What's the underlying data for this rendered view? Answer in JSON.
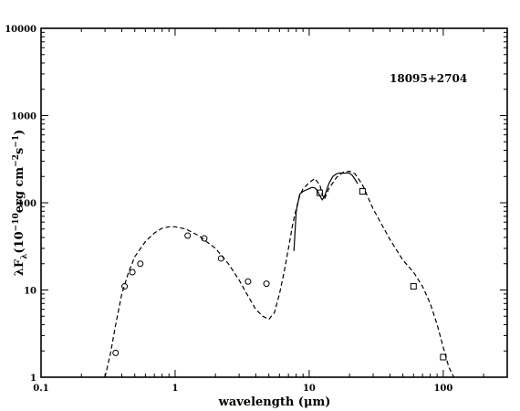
{
  "chart_data": {
    "type": "scatter",
    "title": "",
    "annotation": "18095+2704",
    "xlabel": "wavelength (μm)",
    "ylabel_main": "λF",
    "ylabel_sub": "λ",
    "ylabel_rest": "(10",
    "ylabel_exp1": "−10",
    "ylabel_unit": "erg cm",
    "ylabel_exp2": "−2",
    "ylabel_s": "s",
    "ylabel_exp3": "−1",
    "ylabel_close": ")",
    "xscale": "log",
    "yscale": "log",
    "xlim": [
      0.1,
      300
    ],
    "ylim": [
      1,
      10000
    ],
    "grid": false,
    "xtick_values": [
      0.1,
      1,
      10,
      100
    ],
    "xtick_labels": [
      "0.1",
      "1",
      "10",
      "100"
    ],
    "ytick_values": [
      1,
      10,
      100,
      1000,
      10000
    ],
    "ytick_labels": [
      "1",
      "10",
      "100",
      "1000",
      "10000"
    ],
    "series": [
      {
        "marker": "circle",
        "x": [
          0.36,
          0.42,
          0.48,
          0.55,
          1.24,
          1.65,
          2.2,
          3.5,
          4.8
        ],
        "y": [
          1.9,
          11,
          16,
          20,
          42,
          39,
          23,
          12.5,
          11.8
        ]
      },
      {
        "marker": "square",
        "x": [
          12,
          25,
          60,
          100
        ],
        "y": [
          130,
          135,
          11,
          1.7
        ]
      },
      {
        "style": "solid",
        "x": [
          7.7,
          8.0,
          8.5,
          9.0,
          9.5,
          10.0,
          10.5,
          11.0,
          11.5,
          12.0,
          12.5,
          13.0,
          13.5,
          14.0,
          15.0,
          16.0,
          17.0,
          18.0,
          19.0,
          20.0,
          21.0,
          22.0,
          23.0
        ],
        "y": [
          28,
          80,
          125,
          135,
          140,
          145,
          150,
          148,
          138,
          120,
          108,
          118,
          140,
          165,
          200,
          215,
          220,
          218,
          220,
          218,
          205,
          185,
          165
        ]
      },
      {
        "style": "dashed",
        "x": [
          0.3,
          0.33,
          0.36,
          0.4,
          0.45,
          0.5,
          0.6,
          0.7,
          0.8,
          0.9,
          1.0,
          1.2,
          1.5,
          2.0,
          2.5,
          3.0,
          3.5,
          4.0,
          4.5,
          5.0,
          5.5,
          6.0,
          6.5,
          7.0,
          7.5,
          8.0,
          8.5,
          9.0,
          10.0,
          11.0,
          12.0,
          12.5,
          13.0,
          14.0,
          16.0,
          18.0,
          20.0,
          22.0,
          25.0,
          30.0,
          40.0,
          50.0,
          60.0,
          70.0,
          80.0,
          90.0,
          100.0,
          110.0,
          120.0
        ],
        "y": [
          1.0,
          1.9,
          4.0,
          9.0,
          16,
          24,
          36,
          45,
          51,
          53,
          53,
          50,
          42,
          30,
          20,
          13,
          8.5,
          6.0,
          5.0,
          4.6,
          5.5,
          9.0,
          16,
          30,
          55,
          85,
          120,
          145,
          170,
          190,
          160,
          125,
          110,
          145,
          195,
          225,
          230,
          215,
          160,
          85,
          38,
          22,
          16,
          11,
          7.0,
          4.0,
          2.2,
          1.3,
          1.0
        ]
      }
    ]
  }
}
